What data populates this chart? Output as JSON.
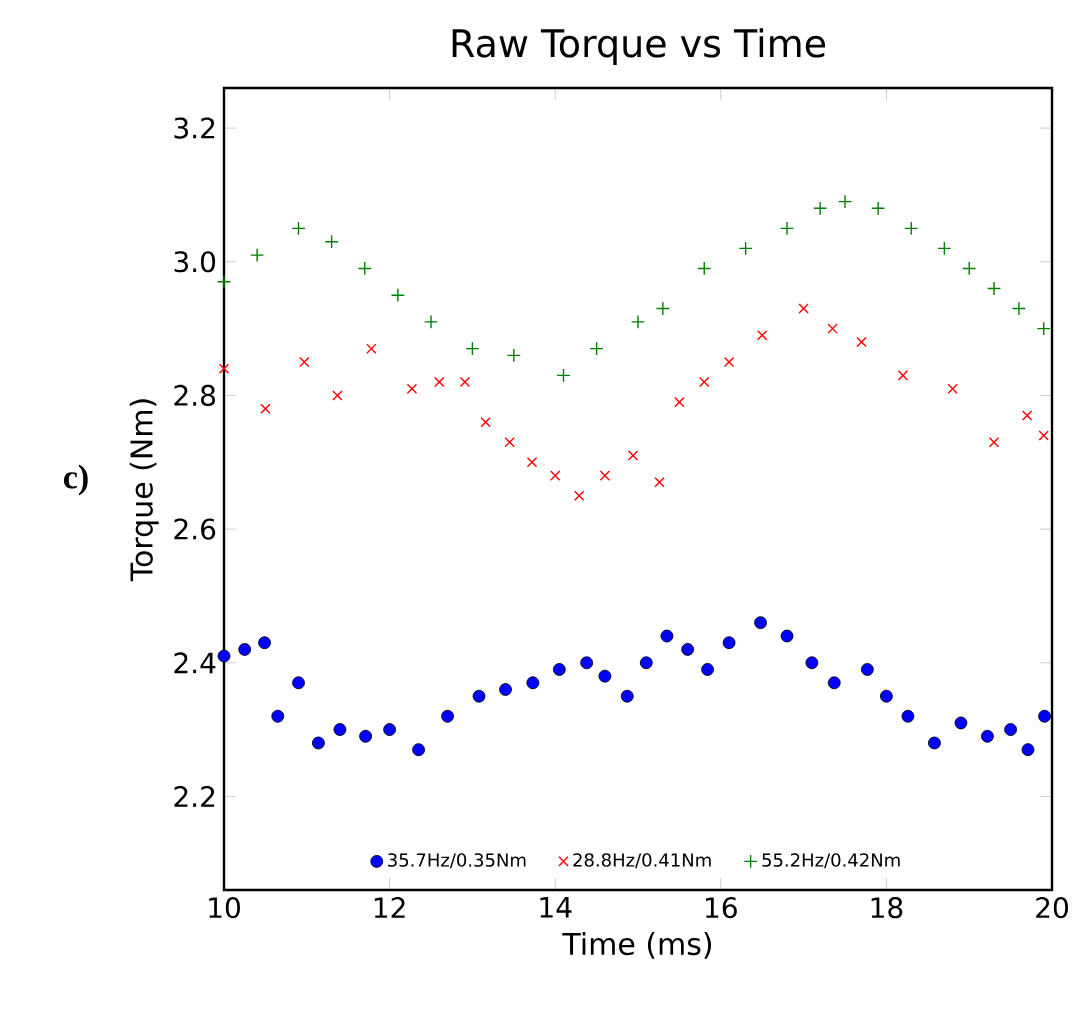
{
  "chart_data": {
    "type": "scatter",
    "title": "Raw Torque vs Time",
    "xlabel": "Time (ms)",
    "ylabel": "Torque (Nm)",
    "annotations": [
      "c)"
    ],
    "xlim": [
      10,
      20
    ],
    "ylim": [
      2.06,
      3.26
    ],
    "xticks": [
      10,
      12,
      14,
      16,
      18,
      20
    ],
    "yticks": [
      {
        "value": 2.2,
        "label": "2.2"
      },
      {
        "value": 2.4,
        "label": "2.4"
      },
      {
        "value": 2.6,
        "label": "2.6"
      },
      {
        "value": 2.8,
        "label": "2.8"
      },
      {
        "value": 3.0,
        "label": "3.0"
      },
      {
        "value": 3.2,
        "label": "3.2"
      }
    ],
    "grid": false,
    "legend": "bottom",
    "series": [
      {
        "name": "35.7Hz/0.35Nm",
        "color": "#0000ff",
        "marker": "circle",
        "x": [
          10.0,
          10.25,
          10.49,
          10.65,
          10.9,
          11.14,
          11.4,
          11.71,
          12.0,
          12.35,
          12.7,
          13.08,
          13.4,
          13.73,
          14.05,
          14.38,
          14.6,
          14.87,
          15.1,
          15.35,
          15.6,
          15.84,
          16.1,
          16.48,
          16.8,
          17.1,
          17.37,
          17.77,
          18.0,
          18.26,
          18.58,
          18.9,
          19.22,
          19.5,
          19.71,
          19.91
        ],
        "values": [
          2.41,
          2.42,
          2.43,
          2.32,
          2.37,
          2.28,
          2.3,
          2.29,
          2.3,
          2.27,
          2.32,
          2.35,
          2.36,
          2.37,
          2.39,
          2.4,
          2.38,
          2.35,
          2.4,
          2.44,
          2.42,
          2.39,
          2.43,
          2.46,
          2.44,
          2.4,
          2.37,
          2.39,
          2.35,
          2.32,
          2.28,
          2.31,
          2.29,
          2.3,
          2.27,
          2.32
        ]
      },
      {
        "name": "28.8Hz/0.41Nm",
        "color": "#ff0000",
        "marker": "cross",
        "x": [
          10.0,
          10.5,
          10.97,
          11.37,
          11.78,
          12.27,
          12.6,
          12.91,
          13.16,
          13.45,
          13.72,
          14.0,
          14.29,
          14.6,
          14.94,
          15.26,
          15.5,
          15.8,
          16.1,
          16.5,
          17.0,
          17.35,
          17.7,
          18.2,
          18.8,
          19.3,
          19.7,
          19.9
        ],
        "values": [
          2.84,
          2.78,
          2.85,
          2.8,
          2.87,
          2.81,
          2.82,
          2.82,
          2.76,
          2.73,
          2.7,
          2.68,
          2.65,
          2.68,
          2.71,
          2.67,
          2.79,
          2.82,
          2.85,
          2.89,
          2.93,
          2.9,
          2.88,
          2.83,
          2.81,
          2.73,
          2.77,
          2.74
        ]
      },
      {
        "name": "55.2Hz/0.42Nm",
        "color": "#008000",
        "marker": "plus",
        "x": [
          10.0,
          10.4,
          10.9,
          11.3,
          11.7,
          12.1,
          12.5,
          13.0,
          13.5,
          14.1,
          14.5,
          15.0,
          15.3,
          15.8,
          16.3,
          16.8,
          17.2,
          17.5,
          17.9,
          18.3,
          18.7,
          19.0,
          19.3,
          19.6,
          19.9
        ],
        "values": [
          2.97,
          3.01,
          3.05,
          3.03,
          2.99,
          2.95,
          2.91,
          2.87,
          2.86,
          2.83,
          2.87,
          2.91,
          2.93,
          2.99,
          3.02,
          3.05,
          3.08,
          3.09,
          3.08,
          3.05,
          3.02,
          2.99,
          2.96,
          2.93,
          2.9
        ]
      }
    ]
  }
}
